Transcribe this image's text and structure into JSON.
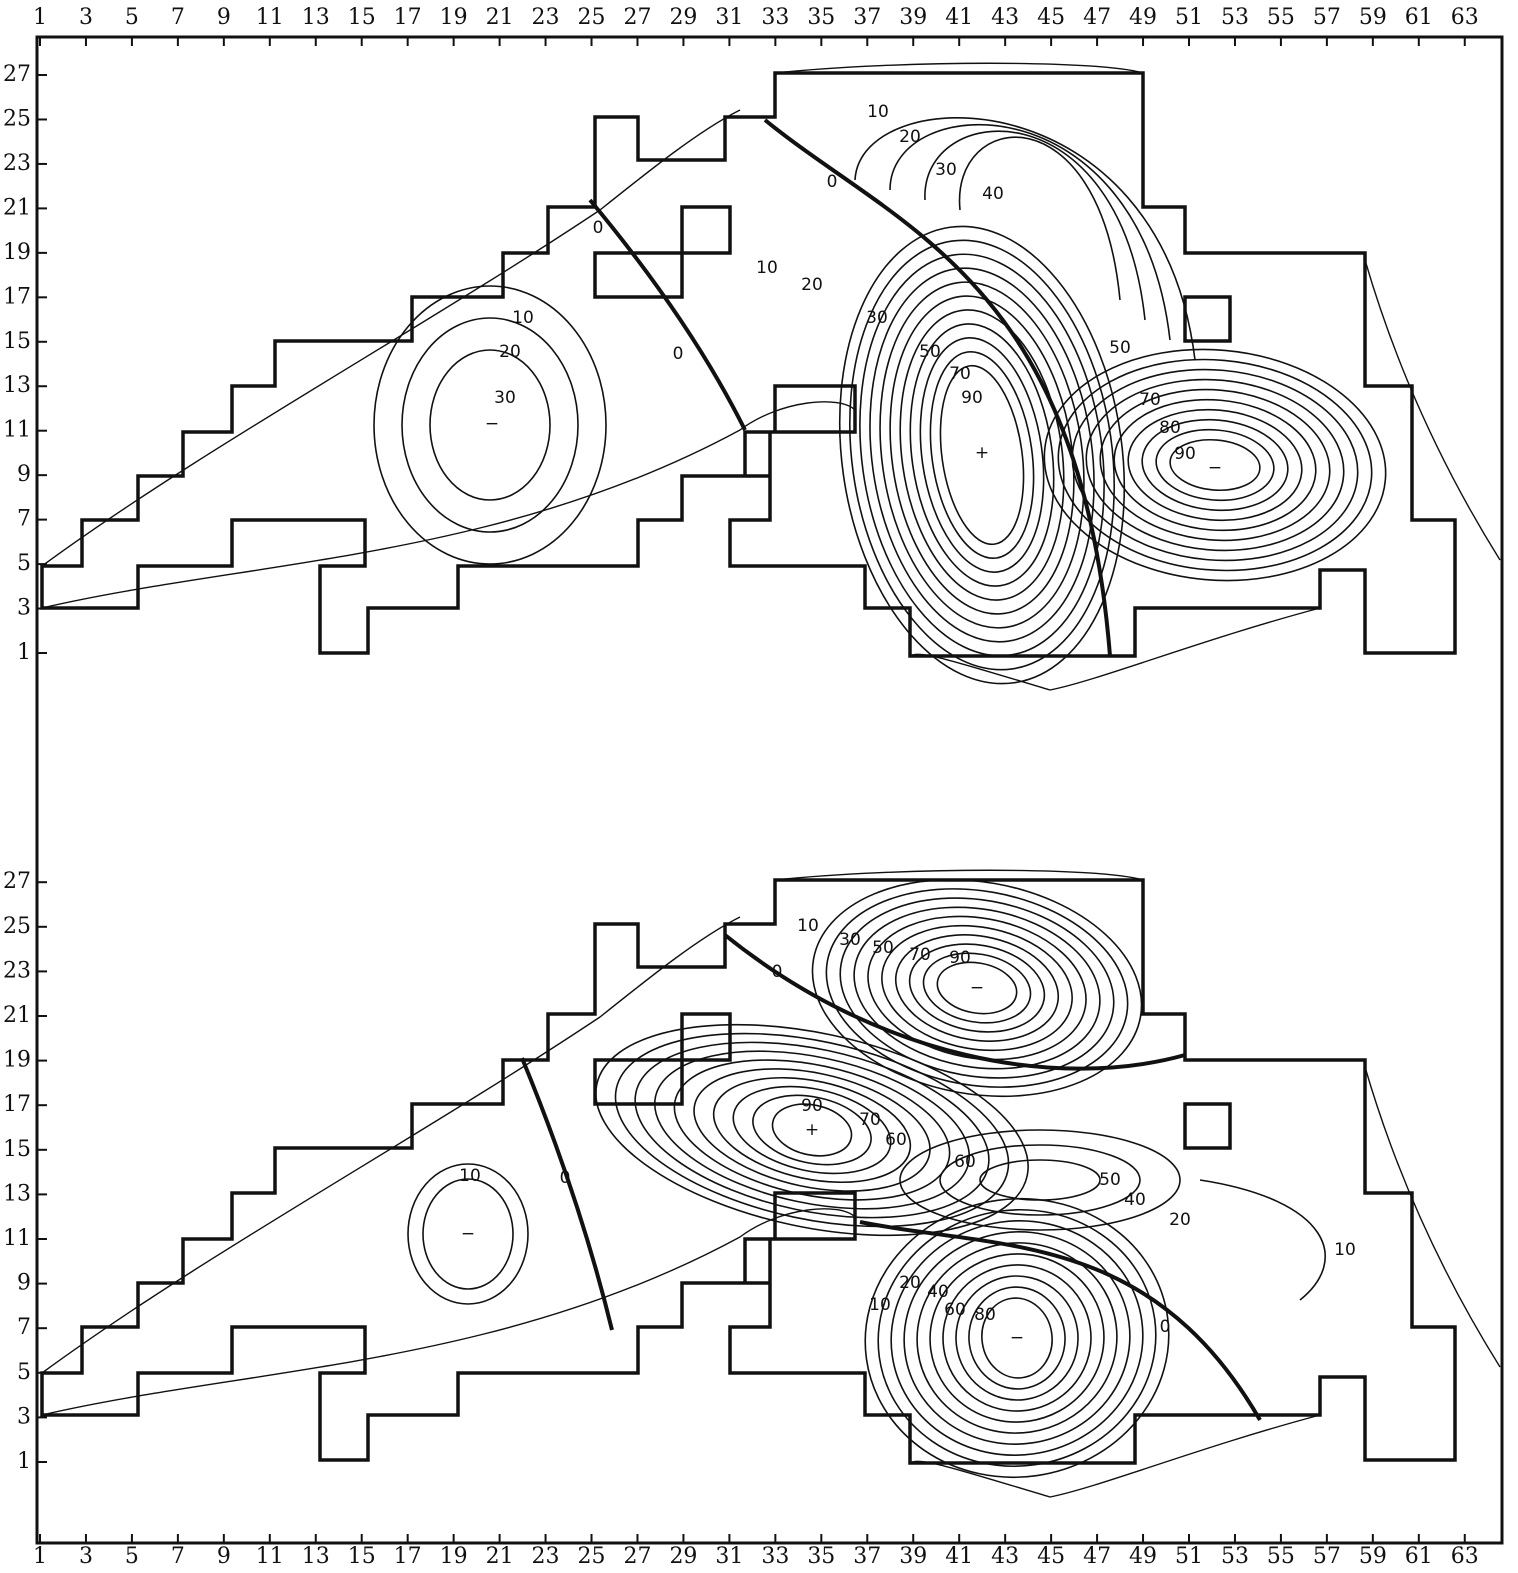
{
  "x_axis_top": {
    "ticks": [
      1,
      3,
      5,
      7,
      9,
      11,
      13,
      15,
      17,
      19,
      21,
      23,
      25,
      27,
      29,
      31,
      33,
      35,
      37,
      39,
      41,
      43,
      45,
      47,
      49,
      51,
      53,
      55,
      57,
      59,
      61,
      63
    ]
  },
  "x_axis_bottom": {
    "ticks": [
      1,
      3,
      5,
      7,
      9,
      11,
      13,
      15,
      17,
      19,
      21,
      23,
      25,
      27,
      29,
      31,
      33,
      35,
      37,
      39,
      41,
      43,
      45,
      47,
      49,
      51,
      53,
      55,
      57,
      59,
      61,
      63
    ]
  },
  "panels": [
    {
      "y_ticks": [
        1,
        3,
        5,
        7,
        9,
        11,
        13,
        15,
        17,
        19,
        21,
        23,
        25,
        27
      ],
      "contour_labels": [
        10,
        20,
        30,
        "−",
        0,
        0,
        0,
        10,
        20,
        30,
        40,
        10,
        20,
        30,
        50,
        70,
        90,
        "+",
        50,
        70,
        80,
        90,
        "−"
      ]
    },
    {
      "y_ticks": [
        1,
        3,
        5,
        7,
        9,
        11,
        13,
        15,
        17,
        19,
        21,
        23,
        25,
        27
      ],
      "contour_labels": [
        10,
        "−",
        0,
        0,
        10,
        30,
        50,
        70,
        90,
        "−",
        90,
        "+",
        70,
        60,
        60,
        50,
        40,
        20,
        10,
        10,
        20,
        40,
        60,
        80,
        "−",
        0
      ]
    }
  ]
}
